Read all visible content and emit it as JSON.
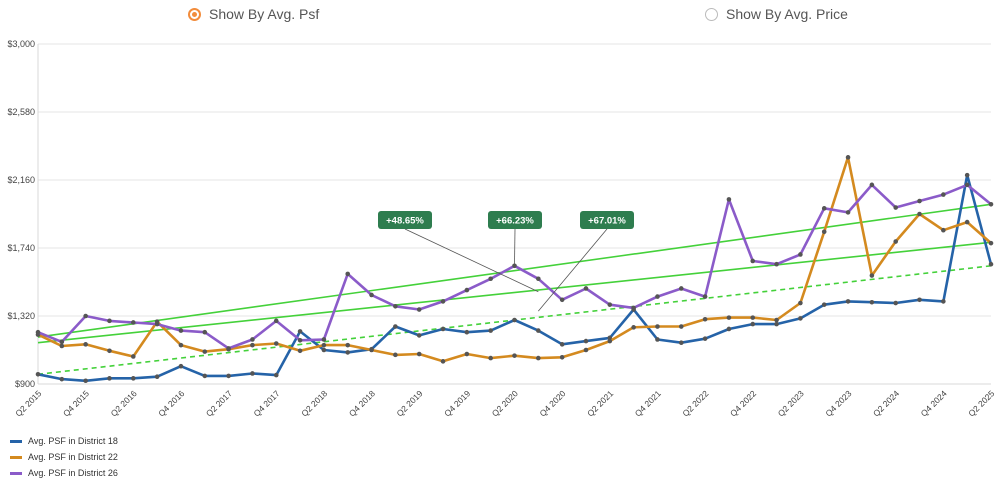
{
  "toggle": {
    "option1": "Show By Avg. Psf",
    "option2": "Show By Avg. Price",
    "selected": "option1"
  },
  "colors": {
    "accent": "#f28c3c",
    "trend": "#44d13a",
    "label_bg": "#2e7d4f"
  },
  "chart_data": {
    "type": "line",
    "x_ticks": [
      "Q2 2015",
      "Q4 2015",
      "Q2 2016",
      "Q4 2016",
      "Q2 2017",
      "Q4 2017",
      "Q2 2018",
      "Q4 2018",
      "Q2 2019",
      "Q4 2019",
      "Q2 2020",
      "Q4 2020",
      "Q2 2021",
      "Q4 2021",
      "Q2 2022",
      "Q4 2022",
      "Q2 2023",
      "Q4 2023",
      "Q2 2024",
      "Q4 2024",
      "Q2 2025"
    ],
    "y_ticks": [
      "$900",
      "$1,320",
      "$1,740",
      "$2,160",
      "$2,580",
      "$3,000"
    ],
    "ylim": [
      900,
      3000
    ],
    "grid": "horizontal",
    "series": [
      {
        "name": "Avg. PSF in District 18",
        "color": "#2563a8",
        "values": [
          960,
          930,
          920,
          935,
          935,
          945,
          1010,
          950,
          950,
          965,
          955,
          1225,
          1110,
          1095,
          1115,
          1255,
          1200,
          1240,
          1220,
          1230,
          1295,
          1230,
          1145,
          1165,
          1185,
          1360,
          1175,
          1155,
          1180,
          1240,
          1270,
          1270,
          1305,
          1390,
          1410,
          1405,
          1400,
          1420,
          1410,
          2190,
          1640
        ]
      },
      {
        "name": "Avg. PSF in District 22",
        "color": "#d48a1f",
        "values": [
          1205,
          1135,
          1145,
          1105,
          1070,
          1285,
          1140,
          1100,
          1115,
          1140,
          1150,
          1105,
          1140,
          1140,
          1110,
          1080,
          1085,
          1040,
          1085,
          1060,
          1075,
          1060,
          1065,
          1110,
          1165,
          1250,
          1255,
          1255,
          1300,
          1310,
          1310,
          1295,
          1400,
          1840,
          2300,
          1570,
          1780,
          1950,
          1850,
          1900,
          1770
        ]
      },
      {
        "name": "Avg. PSF in District 26",
        "color": "#8b5bc9",
        "values": [
          1220,
          1160,
          1320,
          1290,
          1280,
          1270,
          1230,
          1220,
          1120,
          1175,
          1290,
          1170,
          1175,
          1580,
          1450,
          1380,
          1360,
          1410,
          1480,
          1550,
          1630,
          1550,
          1420,
          1490,
          1390,
          1370,
          1440,
          1490,
          1440,
          2040,
          1660,
          1640,
          1700,
          1985,
          1960,
          2130,
          1990,
          2030,
          2070,
          2130,
          2010
        ]
      }
    ],
    "trendlines": [
      {
        "style": "solid",
        "from": 1190,
        "to": 2010
      },
      {
        "style": "solid",
        "from": 1155,
        "to": 1775
      },
      {
        "style": "dashed",
        "from": 960,
        "to": 1630
      }
    ],
    "annotations": [
      {
        "text": "+48.65%"
      },
      {
        "text": "+66.23%"
      },
      {
        "text": "+67.01%"
      }
    ],
    "legend_position": "bottom-left"
  }
}
